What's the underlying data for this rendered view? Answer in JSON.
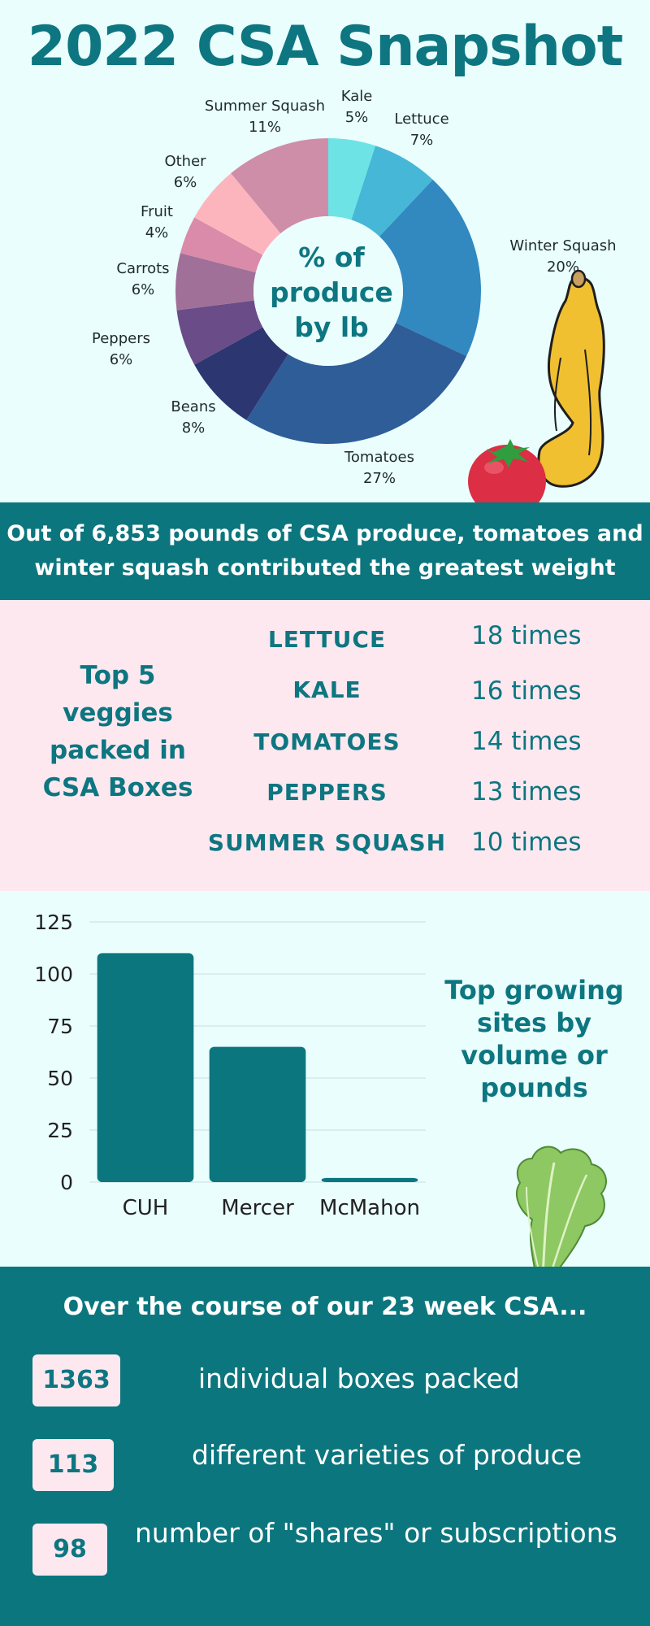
{
  "title": "2022 CSA Snapshot",
  "colors": {
    "teal": "#0c767e",
    "mint_bg": "#eafefe",
    "pink_bg": "#fde8f0"
  },
  "chart_data": [
    {
      "type": "pie",
      "center_label": [
        "% of",
        "produce",
        "by lb"
      ],
      "slices": [
        {
          "label": "Kale",
          "pct_text": "5%",
          "value": 5,
          "color": "#6de3e6"
        },
        {
          "label": "Lettuce",
          "pct_text": "7%",
          "value": 7,
          "color": "#46b7d6"
        },
        {
          "label": "Winter Squash",
          "pct_text": "20%",
          "value": 20,
          "color": "#3189c0"
        },
        {
          "label": "Tomatoes",
          "pct_text": "27%",
          "value": 27,
          "color": "#2f5d98"
        },
        {
          "label": "Beans",
          "pct_text": "8%",
          "value": 8,
          "color": "#2c3670"
        },
        {
          "label": "Peppers",
          "pct_text": "6%",
          "value": 6,
          "color": "#6a4c88"
        },
        {
          "label": "Carrots",
          "pct_text": "6%",
          "value": 6,
          "color": "#a07098"
        },
        {
          "label": "Fruit",
          "pct_text": "4%",
          "value": 4,
          "color": "#d98ba9"
        },
        {
          "label": "Other",
          "pct_text": "6%",
          "value": 6,
          "color": "#fdb5bd"
        },
        {
          "label": "Summer Squash",
          "pct_text": "11%",
          "value": 11,
          "color": "#cf8ea8"
        }
      ]
    },
    {
      "type": "bar",
      "categories": [
        "CUH",
        "Mercer",
        "McMahon"
      ],
      "values": [
        110,
        65,
        2
      ],
      "ylim": [
        0,
        125
      ],
      "yticks": [
        "0",
        "25",
        "50",
        "75",
        "100",
        "125"
      ],
      "grid": true,
      "bar_color": "#0c767e"
    }
  ],
  "banner": {
    "line1": "Out of 6,853 pounds of CSA produce, tomatoes and",
    "line2": "winter squash contributed the greatest weight"
  },
  "top_veggies": {
    "heading": [
      "Top 5",
      "veggies",
      "packed in",
      "CSA Boxes"
    ],
    "items": [
      {
        "name": "LETTUCE",
        "count": "18 times"
      },
      {
        "name": "KALE",
        "count": "16 times"
      },
      {
        "name": "TOMATOES",
        "count": "14 times"
      },
      {
        "name": "PEPPERS",
        "count": "13 times"
      },
      {
        "name": "SUMMER SQUASH",
        "count": "10 times"
      }
    ]
  },
  "sites_heading": [
    "Top growing",
    "sites by",
    "volume or",
    "pounds"
  ],
  "stats": {
    "heading": "Over the course of our 23 week CSA...",
    "items": [
      {
        "number": "1363",
        "label": "individual boxes packed"
      },
      {
        "number": "113",
        "label": "different varieties of produce"
      },
      {
        "number": "98",
        "label": "number of \"shares\" or subscriptions"
      }
    ]
  }
}
